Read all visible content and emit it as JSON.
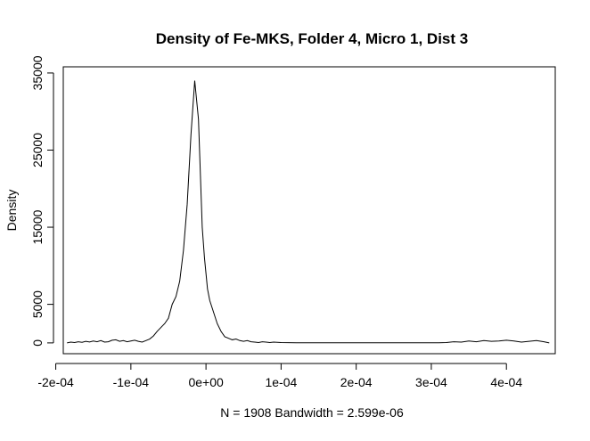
{
  "chart_data": {
    "type": "line",
    "title": "Density of Fe-MKS, Folder 4, Micro 1, Dist 3",
    "xlabel": "N = 1908   Bandwidth = 2.599e-06",
    "ylabel": "Density",
    "xlim": [
      -0.00019,
      0.000465
    ],
    "ylim": [
      -1400,
      35800
    ],
    "grid": false,
    "legend": "none",
    "x_ticks": [
      -0.0002,
      -0.0001,
      0,
      0.0001,
      0.0002,
      0.0003,
      0.0004
    ],
    "x_tick_labels": [
      "-2e-04",
      "-1e-04",
      "0e+00",
      "1e-04",
      "2e-04",
      "3e-04",
      "4e-04"
    ],
    "y_ticks": [
      0,
      5000,
      15000,
      25000,
      35000
    ],
    "y_tick_labels": [
      "0",
      "5000",
      "15000",
      "25000",
      "35000"
    ],
    "series": [
      {
        "x": [
          -0.000185,
          -0.00018,
          -0.000175,
          -0.00017,
          -0.000165,
          -0.00016,
          -0.000155,
          -0.00015,
          -0.000145,
          -0.00014,
          -0.000135,
          -0.00013,
          -0.000125,
          -0.00012,
          -0.000115,
          -0.00011,
          -0.000105,
          -0.0001,
          -9.5e-05,
          -9e-05,
          -8.5e-05,
          -8e-05,
          -7.5e-05,
          -7e-05,
          -6.5e-05,
          -6e-05,
          -5.5e-05,
          -5e-05,
          -4.5e-05,
          -4e-05,
          -3.5e-05,
          -3e-05,
          -2.5e-05,
          -2e-05,
          -1.5e-05,
          -1e-05,
          -5e-06,
          -2e-06,
          0,
          2e-06,
          5e-06,
          1e-05,
          1.5e-05,
          2e-05,
          2.5e-05,
          3e-05,
          3.5e-05,
          4e-05,
          4.5e-05,
          5e-05,
          5.5e-05,
          6e-05,
          6.5e-05,
          7e-05,
          7.5e-05,
          8e-05,
          8.5e-05,
          9e-05,
          0.0001,
          0.00011,
          0.00012,
          0.00013,
          0.00015,
          0.0002,
          0.00025,
          0.0003,
          0.00031,
          0.00032,
          0.00033,
          0.00034,
          0.00035,
          0.00036,
          0.00037,
          0.00038,
          0.00039,
          0.0004,
          0.00041,
          0.00042,
          0.00043,
          0.00044,
          0.00045,
          0.000457
        ],
        "y": [
          0,
          100,
          50,
          150,
          80,
          200,
          120,
          250,
          150,
          300,
          100,
          150,
          350,
          400,
          200,
          300,
          150,
          250,
          350,
          200,
          100,
          300,
          500,
          900,
          1500,
          2000,
          2500,
          3200,
          5000,
          6000,
          8000,
          12000,
          18000,
          27000,
          34000,
          29000,
          15000,
          11000,
          9000,
          7000,
          5500,
          4000,
          2500,
          1500,
          800,
          600,
          400,
          500,
          300,
          200,
          300,
          150,
          100,
          50,
          150,
          100,
          50,
          100,
          50,
          30,
          20,
          10,
          10,
          10,
          10,
          10,
          20,
          50,
          150,
          100,
          250,
          150,
          300,
          200,
          250,
          350,
          250,
          100,
          200,
          300,
          150,
          0
        ]
      }
    ]
  }
}
